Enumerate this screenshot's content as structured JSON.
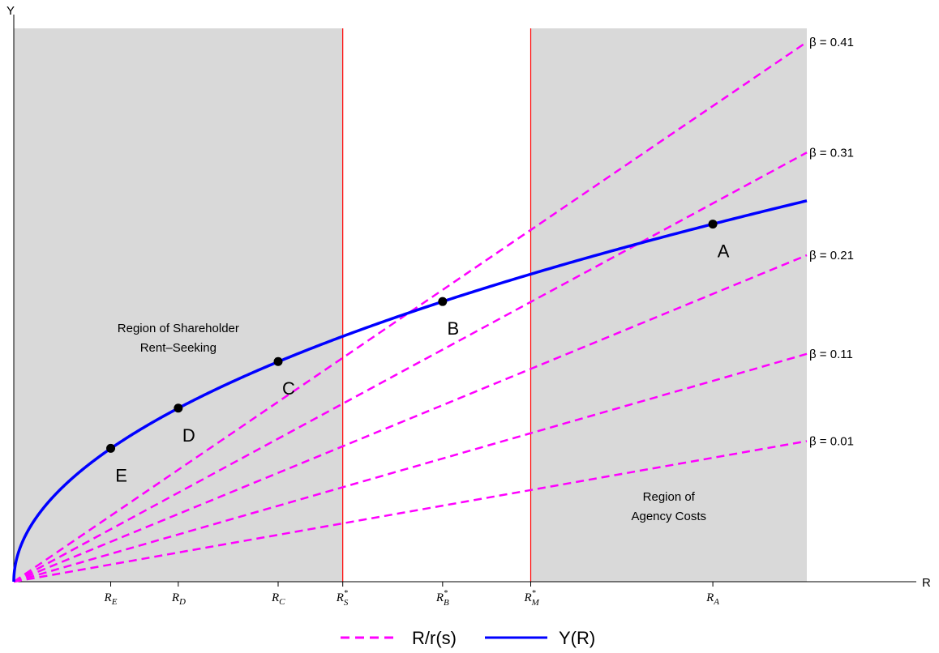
{
  "chart_data": {
    "type": "line",
    "xlabel": "R",
    "ylabel": "Y",
    "x_range": [
      0,
      13.5
    ],
    "y_range": [
      0,
      9.5
    ],
    "grid": false,
    "legend": "bottom-center",
    "ticks": [
      {
        "id": "RE",
        "base": "R",
        "sub": "E",
        "star": false,
        "x": 1.65
      },
      {
        "id": "RD",
        "base": "R",
        "sub": "D",
        "star": false,
        "x": 2.8
      },
      {
        "id": "RC",
        "base": "R",
        "sub": "C",
        "star": false,
        "x": 4.5
      },
      {
        "id": "RS",
        "base": "R",
        "sub": "S",
        "star": true,
        "x": 5.6
      },
      {
        "id": "RB",
        "base": "R",
        "sub": "B",
        "star": true,
        "x": 7.3
      },
      {
        "id": "RM",
        "base": "R",
        "sub": "M",
        "star": true,
        "x": 8.8
      },
      {
        "id": "RA",
        "base": "R",
        "sub": "A",
        "star": false,
        "x": 11.9
      }
    ],
    "regions": [
      {
        "x": [
          0,
          5.6
        ],
        "label_lines": [
          "Region of Shareholder",
          "Rent–Seeking"
        ],
        "color": "#d9d9d9"
      },
      {
        "x": [
          8.8,
          13.5
        ],
        "label_lines": [
          "Region of",
          "Agency Costs"
        ],
        "color": "#d9d9d9"
      }
    ],
    "vlines": [
      {
        "x": 5.6,
        "color": "#ff0000"
      },
      {
        "x": 8.8,
        "color": "#ff0000"
      }
    ],
    "series": [
      {
        "name": "Y(R)",
        "style": "solid",
        "color": "#0000ff",
        "formula": "Y = 1.78 * sqrt(R)",
        "x_max": 13.5
      },
      {
        "name": "R/r(s)",
        "style": "dashed",
        "color": "#ff00ff",
        "lines": [
          {
            "label": "β = 0.41",
            "slope": 0.6863
          },
          {
            "label": "β = 0.31",
            "slope": 0.5458
          },
          {
            "label": "β = 0.21",
            "slope": 0.4152
          },
          {
            "label": "β = 0.11",
            "slope": 0.2897
          },
          {
            "label": "β = 0.01",
            "slope": 0.1788
          }
        ]
      }
    ],
    "points": [
      {
        "label": "A",
        "x": 11.9,
        "y": 6.14
      },
      {
        "label": "B",
        "x": 7.3,
        "y": 4.81
      },
      {
        "label": "C",
        "x": 4.5,
        "y": 3.78
      },
      {
        "label": "D",
        "x": 2.8,
        "y": 2.98
      },
      {
        "label": "E",
        "x": 1.65,
        "y": 2.29
      }
    ]
  },
  "legend": {
    "items": [
      {
        "label": "R/r(s)",
        "style": "dashed",
        "color": "#ff00ff"
      },
      {
        "label": "Y(R)",
        "style": "solid",
        "color": "#0000ff"
      }
    ]
  }
}
